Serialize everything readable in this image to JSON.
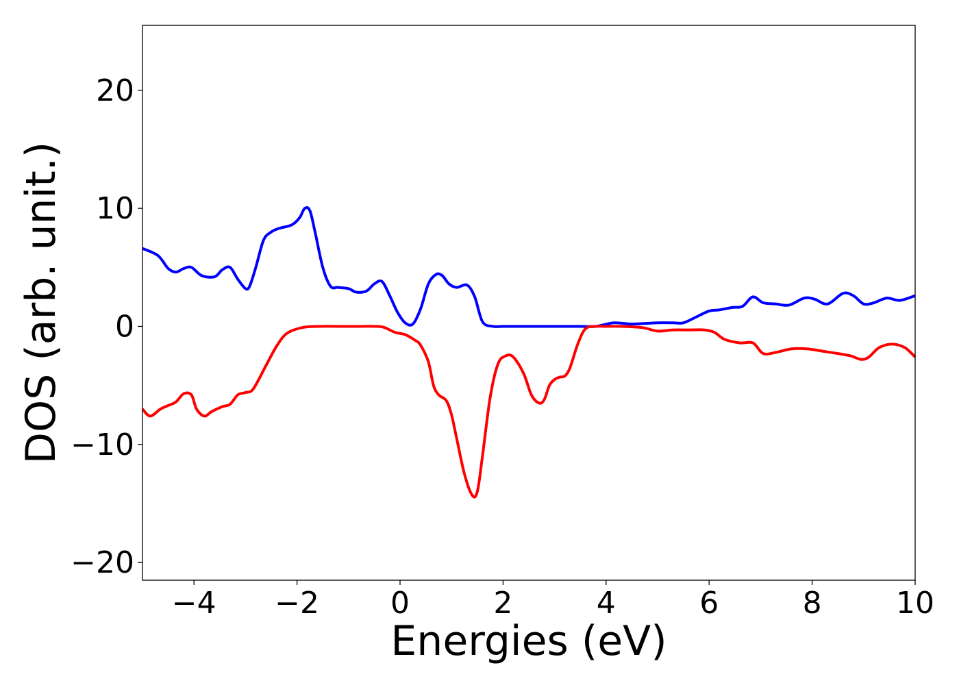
{
  "chart_data": {
    "type": "line",
    "xlabel": "Energies (eV)",
    "ylabel": "DOS (arb. unit.)",
    "xlim": [
      -5,
      10
    ],
    "ylim": [
      -21.5,
      25.5
    ],
    "xticks": [
      -4,
      -2,
      0,
      2,
      4,
      6,
      8,
      10
    ],
    "xtick_labels": [
      "−4",
      "−2",
      "0",
      "2",
      "4",
      "6",
      "8",
      "10"
    ],
    "yticks": [
      -20,
      -10,
      0,
      10,
      20
    ],
    "ytick_labels": [
      "−20",
      "−10",
      "0",
      "10",
      "20"
    ],
    "grid": false,
    "series": [
      {
        "color": "#0000ff",
        "x": [
          -5.0,
          -4.7,
          -4.5,
          -4.35,
          -4.2,
          -4.05,
          -3.85,
          -3.6,
          -3.45,
          -3.3,
          -3.15,
          -3.0,
          -2.92,
          -2.8,
          -2.65,
          -2.5,
          -2.35,
          -2.1,
          -1.95,
          -1.85,
          -1.75,
          -1.65,
          -1.5,
          -1.35,
          -1.2,
          -1.0,
          -0.85,
          -0.65,
          -0.5,
          -0.35,
          -0.2,
          -0.05,
          0.1,
          0.25,
          0.4,
          0.55,
          0.7,
          0.82,
          0.95,
          1.1,
          1.3,
          1.45,
          1.6,
          1.8,
          2.0,
          2.5,
          3.0,
          3.5,
          3.8,
          4.15,
          4.5,
          5.0,
          5.3,
          5.5,
          5.75,
          6.0,
          6.2,
          6.45,
          6.65,
          6.85,
          7.05,
          7.3,
          7.55,
          7.85,
          8.05,
          8.3,
          8.6,
          8.8,
          9.0,
          9.2,
          9.45,
          9.7,
          10.0
        ],
        "y": [
          6.6,
          6.0,
          4.9,
          4.6,
          4.9,
          5.0,
          4.3,
          4.2,
          4.8,
          5.0,
          4.0,
          3.2,
          3.4,
          5.0,
          7.3,
          8.0,
          8.3,
          8.6,
          9.2,
          10.0,
          9.8,
          8.0,
          5.0,
          3.4,
          3.3,
          3.2,
          2.9,
          3.0,
          3.6,
          3.8,
          2.6,
          1.2,
          0.3,
          0.2,
          1.5,
          3.6,
          4.4,
          4.3,
          3.6,
          3.3,
          3.5,
          2.5,
          0.4,
          0.0,
          0.0,
          0.0,
          0.0,
          0.0,
          0.0,
          0.3,
          0.2,
          0.3,
          0.3,
          0.3,
          0.8,
          1.3,
          1.4,
          1.6,
          1.7,
          2.5,
          2.0,
          1.9,
          1.8,
          2.4,
          2.3,
          1.9,
          2.8,
          2.6,
          1.9,
          2.0,
          2.4,
          2.2,
          2.6
        ]
      },
      {
        "color": "#ff0000",
        "x": [
          -5.0,
          -4.85,
          -4.65,
          -4.5,
          -4.35,
          -4.2,
          -4.05,
          -3.95,
          -3.8,
          -3.65,
          -3.45,
          -3.3,
          -3.15,
          -3.0,
          -2.85,
          -2.6,
          -2.4,
          -2.2,
          -1.9,
          -1.6,
          -1.2,
          -0.8,
          -0.45,
          -0.3,
          -0.1,
          0.1,
          0.3,
          0.4,
          0.55,
          0.65,
          0.75,
          0.9,
          1.0,
          1.1,
          1.25,
          1.4,
          1.5,
          1.6,
          1.75,
          1.9,
          2.05,
          2.2,
          2.4,
          2.55,
          2.7,
          2.8,
          2.9,
          3.0,
          3.1,
          3.2,
          3.3,
          3.45,
          3.6,
          3.8,
          4.0,
          4.3,
          4.7,
          5.0,
          5.3,
          5.6,
          5.9,
          6.1,
          6.3,
          6.6,
          6.85,
          7.05,
          7.3,
          7.6,
          7.9,
          8.2,
          8.5,
          8.75,
          8.95,
          9.1,
          9.3,
          9.55,
          9.8,
          10.0
        ],
        "y": [
          -7.0,
          -7.6,
          -7.0,
          -6.7,
          -6.4,
          -5.7,
          -5.8,
          -7.0,
          -7.6,
          -7.2,
          -6.8,
          -6.6,
          -5.8,
          -5.6,
          -5.3,
          -3.3,
          -1.7,
          -0.6,
          -0.1,
          0.0,
          0.0,
          0.0,
          0.0,
          -0.1,
          -0.5,
          -0.7,
          -1.2,
          -1.6,
          -3.0,
          -5.0,
          -5.8,
          -6.3,
          -7.5,
          -9.5,
          -12.5,
          -14.3,
          -14.0,
          -11.0,
          -6.0,
          -3.2,
          -2.5,
          -2.6,
          -4.0,
          -5.8,
          -6.5,
          -6.2,
          -5.0,
          -4.5,
          -4.3,
          -4.2,
          -3.5,
          -1.5,
          -0.2,
          0.0,
          0.0,
          0.0,
          -0.1,
          -0.4,
          -0.3,
          -0.3,
          -0.3,
          -0.5,
          -1.1,
          -1.4,
          -1.4,
          -2.3,
          -2.2,
          -1.9,
          -1.9,
          -2.1,
          -2.3,
          -2.5,
          -2.8,
          -2.6,
          -1.8,
          -1.5,
          -1.8,
          -2.6
        ]
      }
    ]
  }
}
